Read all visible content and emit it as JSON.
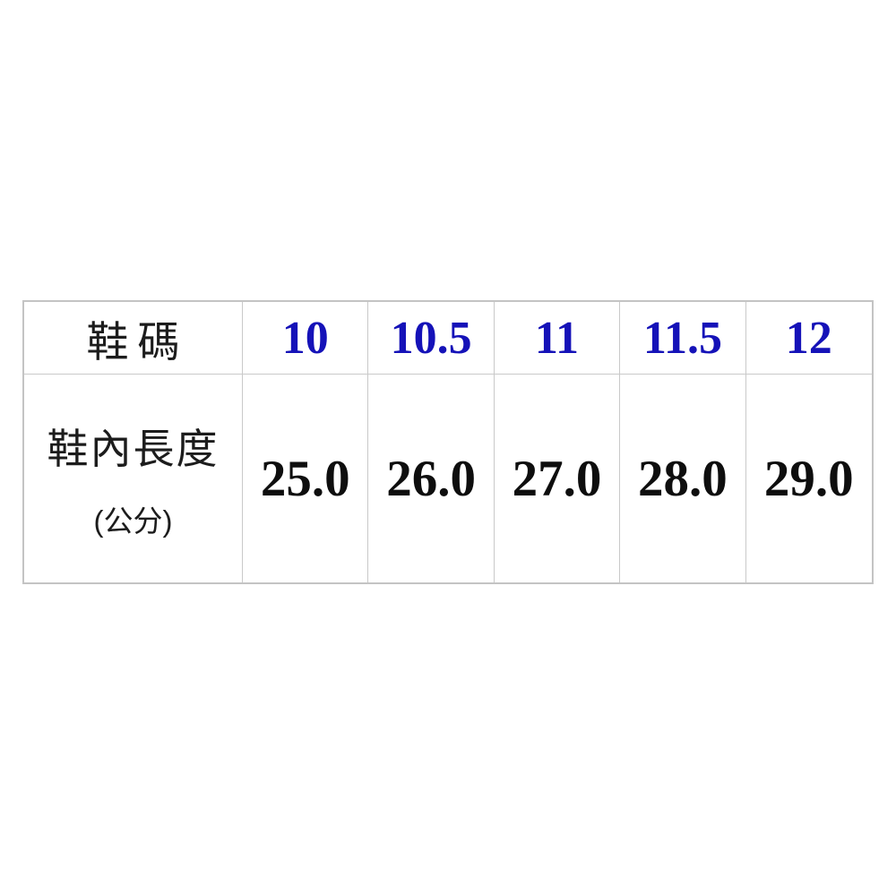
{
  "size_chart": {
    "header": {
      "label": "鞋碼",
      "sizes": [
        "10",
        "10.5",
        "11",
        "11.5",
        "12"
      ]
    },
    "body": {
      "label_line1": "鞋內長度",
      "label_line2": "(公分)",
      "values": [
        "25.0",
        "26.0",
        "27.0",
        "28.0",
        "29.0"
      ]
    },
    "colors": {
      "size_text": "#1512b8",
      "value_text": "#0e0e0e",
      "label_text": "#1c1c1c",
      "border_inner": "#c9c9c9",
      "border_outer": "#c4c4c4",
      "background": "#ffffff"
    }
  },
  "chart_data": {
    "type": "table",
    "columns": [
      "鞋碼",
      "10",
      "10.5",
      "11",
      "11.5",
      "12"
    ],
    "rows": [
      [
        "鞋內長度 (公分)",
        "25.0",
        "26.0",
        "27.0",
        "28.0",
        "29.0"
      ]
    ],
    "notes": {
      "header_row_text_color": "blue",
      "value_row_text_color": "black",
      "unit": "公分 (cm)",
      "mapping": {
        "10": 25.0,
        "10.5": 26.0,
        "11": 27.0,
        "11.5": 28.0,
        "12": 29.0
      }
    }
  }
}
